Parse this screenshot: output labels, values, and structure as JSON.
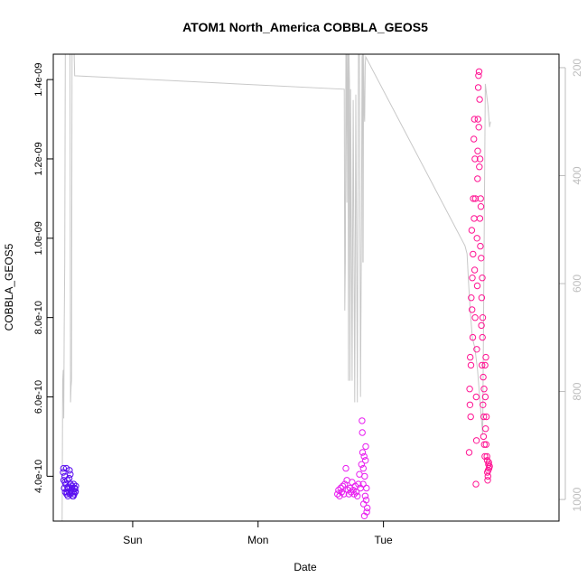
{
  "chart_data": {
    "type": "scatter",
    "title": "ATOM1 North_America COBBLA_GEOS5",
    "xlabel": "Date",
    "ylabel": "COBBLA_GEOS5",
    "x_ticks": [
      "Sun",
      "Mon",
      "Tue"
    ],
    "y_ticks": [
      {
        "value": 4e-10,
        "label": "4.0e-10"
      },
      {
        "value": 6e-10,
        "label": "6.0e-10"
      },
      {
        "value": 8e-10,
        "label": "8.0e-10"
      },
      {
        "value": 1e-09,
        "label": "1.0e-09"
      },
      {
        "value": 1.2e-09,
        "label": "1.2e-09"
      },
      {
        "value": 1.4e-09,
        "label": "1.4e-09"
      }
    ],
    "y2_ticks": [
      200,
      400,
      600,
      800,
      1000
    ],
    "xlim_hours": [
      -15.2,
      81.6
    ],
    "ylim": [
      2.87e-10,
      1.464e-09
    ],
    "y2lim": [
      1040,
      175
    ],
    "grid": false,
    "series": [
      {
        "color": "#5B10F0",
        "points": [
          [
            -13.3,
            4.1e-10
          ],
          [
            -13.2,
            3.9e-10
          ],
          [
            -13.1,
            3.7e-10
          ],
          [
            -13.0,
            4e-10
          ],
          [
            -12.9,
            3.6e-10
          ],
          [
            -12.8,
            3.8e-10
          ],
          [
            -12.7,
            4.2e-10
          ],
          [
            -12.6,
            3.6e-10
          ],
          [
            -12.5,
            3.9e-10
          ],
          [
            -12.4,
            3.5e-10
          ],
          [
            -12.3,
            3.7e-10
          ],
          [
            -12.2,
            3.6e-10
          ],
          [
            -12.1,
            4.15e-10
          ],
          [
            -12.0,
            3.55e-10
          ],
          [
            -11.9,
            3.8e-10
          ],
          [
            -11.8,
            3.65e-10
          ],
          [
            -11.7,
            3.6e-10
          ],
          [
            -11.6,
            3.75e-10
          ],
          [
            -11.5,
            3.5e-10
          ],
          [
            -11.4,
            3.6e-10
          ],
          [
            -11.3,
            3.8e-10
          ],
          [
            -11.2,
            3.55e-10
          ],
          [
            -11.1,
            3.7e-10
          ],
          [
            -11.0,
            3.6e-10
          ],
          [
            -10.9,
            3.75e-10
          ],
          [
            -13.25,
            4.2e-10
          ],
          [
            -12.95,
            3.85e-10
          ],
          [
            -12.65,
            3.55e-10
          ],
          [
            -12.15,
            3.95e-10
          ],
          [
            -11.95,
            4.05e-10
          ],
          [
            -11.65,
            3.7e-10
          ],
          [
            -11.35,
            3.5e-10
          ],
          [
            -11.05,
            3.68e-10
          ],
          [
            -10.95,
            3.62e-10
          ],
          [
            -12.45,
            3.72e-10
          ]
        ]
      },
      {
        "color": "#E81EF0",
        "points": [
          [
            39.2,
            3.55e-10
          ],
          [
            39.4,
            3.65e-10
          ],
          [
            39.6,
            3.5e-10
          ],
          [
            39.8,
            3.7e-10
          ],
          [
            40.0,
            3.6e-10
          ],
          [
            40.2,
            3.75e-10
          ],
          [
            40.4,
            3.55e-10
          ],
          [
            40.6,
            3.8e-10
          ],
          [
            40.8,
            4.2e-10
          ],
          [
            41.0,
            3.9e-10
          ],
          [
            41.2,
            3.65e-10
          ],
          [
            41.4,
            3.55e-10
          ],
          [
            41.6,
            3.7e-10
          ],
          [
            41.8,
            3.6e-10
          ],
          [
            42.0,
            3.85e-10
          ],
          [
            42.2,
            3.65e-10
          ],
          [
            42.4,
            3.55e-10
          ],
          [
            42.6,
            3.75e-10
          ],
          [
            42.8,
            3.6e-10
          ],
          [
            43.0,
            3.5e-10
          ],
          [
            43.2,
            3.8e-10
          ],
          [
            43.4,
            4.05e-10
          ],
          [
            43.6,
            3.7e-10
          ],
          [
            43.8,
            4.3e-10
          ],
          [
            43.9,
            5.4e-10
          ],
          [
            44.0,
            4.6e-10
          ],
          [
            44.1,
            3.8e-10
          ],
          [
            44.2,
            3.3e-10
          ],
          [
            44.3,
            4.5e-10
          ],
          [
            44.4,
            4e-10
          ],
          [
            44.5,
            3.5e-10
          ],
          [
            44.6,
            4.75e-10
          ],
          [
            44.7,
            3.4e-10
          ],
          [
            44.8,
            3.1e-10
          ],
          [
            44.9,
            3.2e-10
          ],
          [
            44.35,
            3e-10
          ],
          [
            43.95,
            5.1e-10
          ],
          [
            44.15,
            4.2e-10
          ],
          [
            44.55,
            4.4e-10
          ],
          [
            44.75,
            3.7e-10
          ]
        ]
      },
      {
        "color": "#FF1493",
        "points": [
          [
            64.4,
            4.6e-10
          ],
          [
            64.5,
            6.2e-10
          ],
          [
            64.6,
            7e-10
          ],
          [
            64.7,
            5.5e-10
          ],
          [
            64.8,
            8.5e-10
          ],
          [
            64.9,
            1.02e-09
          ],
          [
            65.0,
            9e-10
          ],
          [
            65.1,
            7.5e-10
          ],
          [
            65.2,
            1.1e-09
          ],
          [
            65.3,
            1.25e-09
          ],
          [
            65.4,
            1.3e-09
          ],
          [
            65.5,
            1.2e-09
          ],
          [
            65.6,
            1.1e-09
          ],
          [
            65.7,
            3.8e-10
          ],
          [
            65.8,
            4.9e-10
          ],
          [
            65.9,
            1e-09
          ],
          [
            66.0,
            1.15e-09
          ],
          [
            66.1,
            1.3e-09
          ],
          [
            66.2,
            1.41e-09
          ],
          [
            66.3,
            1.42e-09
          ],
          [
            66.4,
            1.35e-09
          ],
          [
            66.5,
            1.2e-09
          ],
          [
            66.6,
            1.1e-09
          ],
          [
            66.7,
            9.5e-10
          ],
          [
            66.8,
            8.5e-10
          ],
          [
            66.9,
            9e-10
          ],
          [
            67.0,
            8e-10
          ],
          [
            67.1,
            6.5e-10
          ],
          [
            67.2,
            5.5e-10
          ],
          [
            67.3,
            4.8e-10
          ],
          [
            67.4,
            4.5e-10
          ],
          [
            67.5,
            6e-10
          ],
          [
            67.6,
            7e-10
          ],
          [
            67.7,
            5.5e-10
          ],
          [
            67.8,
            4.5e-10
          ],
          [
            67.9,
            4.1e-10
          ],
          [
            68.0,
            4e-10
          ],
          [
            68.1,
            4.3e-10
          ],
          [
            68.2,
            4.2e-10
          ],
          [
            68.3,
            4.25e-10
          ],
          [
            64.55,
            5.8e-10
          ],
          [
            64.75,
            6.8e-10
          ],
          [
            64.95,
            8.2e-10
          ],
          [
            65.15,
            9.6e-10
          ],
          [
            65.35,
            1.05e-09
          ],
          [
            65.45,
            9.2e-10
          ],
          [
            65.55,
            8e-10
          ],
          [
            65.75,
            6e-10
          ],
          [
            65.85,
            7.2e-10
          ],
          [
            65.95,
            8.8e-10
          ],
          [
            66.05,
            1.22e-09
          ],
          [
            66.15,
            1.38e-09
          ],
          [
            66.25,
            1.28e-09
          ],
          [
            66.35,
            1.18e-09
          ],
          [
            66.45,
            1.05e-09
          ],
          [
            66.55,
            9.8e-10
          ],
          [
            66.65,
            1.08e-09
          ],
          [
            66.75,
            7.8e-10
          ],
          [
            66.85,
            6.8e-10
          ],
          [
            66.95,
            7.5e-10
          ],
          [
            67.05,
            5.8e-10
          ],
          [
            67.15,
            5e-10
          ],
          [
            67.25,
            6.2e-10
          ],
          [
            67.45,
            6.8e-10
          ],
          [
            67.55,
            5.2e-10
          ],
          [
            67.65,
            4.8e-10
          ],
          [
            67.85,
            4.4e-10
          ],
          [
            67.95,
            3.9e-10
          ],
          [
            68.05,
            4.15e-10
          ],
          [
            68.15,
            4.35e-10
          ]
        ]
      }
    ],
    "line_y2": {
      "color": "#C8C8C8",
      "points": [
        [
          -13.5,
          1040
        ],
        [
          -13.4,
          780
        ],
        [
          -13.3,
          760
        ],
        [
          -13.2,
          850
        ],
        [
          -13.1,
          680
        ],
        [
          -13.0,
          560
        ],
        [
          -12.9,
          175
        ],
        [
          -12.8,
          175
        ],
        [
          -12.7,
          175
        ],
        [
          -12.2,
          175
        ],
        [
          -12.0,
          175
        ],
        [
          -11.9,
          820
        ],
        [
          -11.8,
          790
        ],
        [
          -11.7,
          780
        ],
        [
          -11.6,
          175
        ],
        [
          -11.5,
          175
        ],
        [
          -11.4,
          175
        ],
        [
          -11.2,
          175
        ],
        [
          -11.1,
          215
        ],
        [
          40.5,
          240
        ],
        [
          40.6,
          650
        ],
        [
          40.7,
          560
        ],
        [
          40.8,
          175
        ],
        [
          40.9,
          175
        ],
        [
          41.0,
          450
        ],
        [
          41.1,
          175
        ],
        [
          41.2,
          175
        ],
        [
          41.3,
          780
        ],
        [
          41.4,
          175
        ],
        [
          41.5,
          228
        ],
        [
          41.6,
          780
        ],
        [
          41.7,
          240
        ],
        [
          42.0,
          780
        ],
        [
          42.2,
          260
        ],
        [
          42.5,
          820
        ],
        [
          42.7,
          250
        ],
        [
          43.0,
          820
        ],
        [
          43.2,
          175
        ],
        [
          43.3,
          175
        ],
        [
          43.4,
          175
        ],
        [
          43.6,
          810
        ],
        [
          43.8,
          480
        ],
        [
          43.9,
          180
        ],
        [
          44.0,
          175
        ],
        [
          44.05,
          560
        ],
        [
          44.1,
          560
        ],
        [
          44.15,
          390
        ],
        [
          44.2,
          175
        ],
        [
          44.3,
          280
        ],
        [
          44.4,
          300
        ],
        [
          44.5,
          195
        ],
        [
          44.6,
          180
        ],
        [
          63.6,
          530
        ],
        [
          64.0,
          545
        ],
        [
          64.3,
          600
        ],
        [
          64.6,
          650
        ],
        [
          65.0,
          700
        ],
        [
          65.5,
          720
        ],
        [
          66.0,
          760
        ],
        [
          66.5,
          820
        ],
        [
          67.0,
          880
        ],
        [
          67.5,
          230
        ],
        [
          68.0,
          270
        ],
        [
          68.3,
          310
        ],
        [
          68.5,
          300
        ]
      ]
    }
  }
}
